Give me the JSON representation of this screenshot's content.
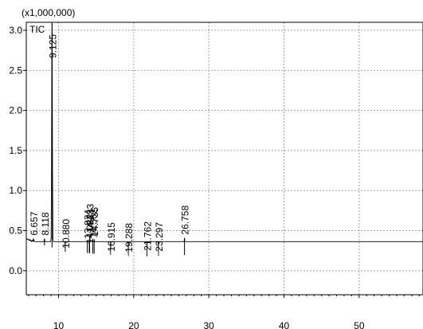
{
  "chart_data": {
    "type": "line",
    "series_label": "TIC",
    "y_multiplier": "(x1,000,000)",
    "xlim": [
      5.7,
      58.5
    ],
    "ylim": [
      -0.3,
      3.1
    ],
    "x_ticks": [
      10,
      20,
      30,
      40,
      50
    ],
    "y_ticks": [
      0.0,
      0.5,
      1.0,
      1.5,
      2.0,
      2.5,
      3.0
    ],
    "x_tick_labels": [
      "10",
      "20",
      "30",
      "40",
      "50"
    ],
    "y_tick_labels": [
      "0.0",
      "0.5",
      "1.0",
      "1.5",
      "2.0",
      "2.5",
      "3.0"
    ],
    "grid": true,
    "colors": {
      "trace": "#000000",
      "grid": "#a0a0a0",
      "axis": "#000000"
    },
    "peaks": [
      {
        "label": "6.657",
        "rt": 6.657,
        "height": 0.4
      },
      {
        "label": "8.118",
        "rt": 8.118,
        "height": 0.4
      },
      {
        "label": "9.125",
        "rt": 9.125,
        "height": 3.1
      },
      {
        "label": "10.880",
        "rt": 10.88,
        "height": 0.24
      },
      {
        "label": "13.824",
        "rt": 13.824,
        "height": 0.36
      },
      {
        "label": "14.082",
        "rt": 14.082,
        "height": 0.3
      },
      {
        "label": "14.133",
        "rt": 14.133,
        "height": 0.43
      },
      {
        "label": "14.562",
        "rt": 14.562,
        "height": 0.37
      },
      {
        "label": "14.735",
        "rt": 14.735,
        "height": 0.39
      },
      {
        "label": "16.915",
        "rt": 16.915,
        "height": 0.2
      },
      {
        "label": "19.288",
        "rt": 19.288,
        "height": 0.19
      },
      {
        "label": "21.762",
        "rt": 21.762,
        "height": 0.21
      },
      {
        "label": "23.297",
        "rt": 23.297,
        "height": 0.2
      },
      {
        "label": "26.758",
        "rt": 26.758,
        "height": 0.41
      }
    ],
    "baseline": [
      [
        5.7,
        0.4
      ],
      [
        6.2,
        0.38
      ],
      [
        7.0,
        0.35
      ],
      [
        8.0,
        0.32
      ],
      [
        9.0,
        0.29
      ],
      [
        10.0,
        0.27
      ],
      [
        12.0,
        0.24
      ],
      [
        14.0,
        0.22
      ],
      [
        16.0,
        0.2
      ],
      [
        18.0,
        0.19
      ],
      [
        20.0,
        0.18
      ],
      [
        22.0,
        0.18
      ],
      [
        24.0,
        0.19
      ],
      [
        26.0,
        0.19
      ],
      [
        27.5,
        0.2
      ],
      [
        29.0,
        0.2
      ],
      [
        31.0,
        0.21
      ],
      [
        31.8,
        0.27
      ],
      [
        32.5,
        0.21
      ],
      [
        34.0,
        0.19
      ],
      [
        35.0,
        0.2
      ],
      [
        36.0,
        0.25
      ],
      [
        36.8,
        0.3
      ],
      [
        37.5,
        0.34
      ],
      [
        38.0,
        0.33
      ],
      [
        39.0,
        0.32
      ],
      [
        40.0,
        0.31
      ],
      [
        42.0,
        0.3
      ],
      [
        44.0,
        0.32
      ],
      [
        45.0,
        0.29
      ],
      [
        46.0,
        0.29
      ],
      [
        48.0,
        0.29
      ],
      [
        50.0,
        0.31
      ],
      [
        52.0,
        0.28
      ],
      [
        54.0,
        0.27
      ],
      [
        56.0,
        0.26
      ],
      [
        58.5,
        0.26
      ]
    ]
  }
}
